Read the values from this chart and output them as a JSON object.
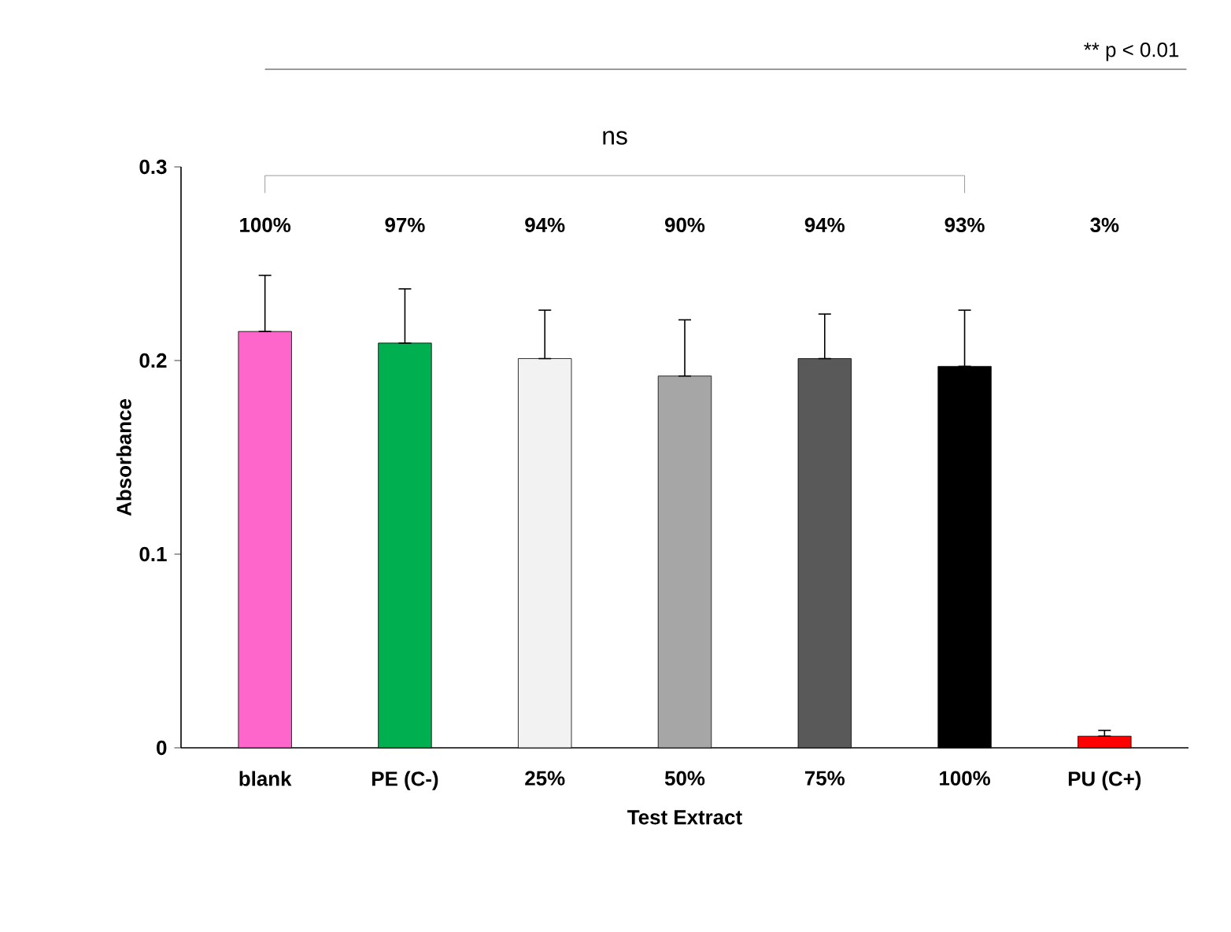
{
  "chart_data": {
    "type": "bar",
    "categories": [
      "blank",
      "PE (C-)",
      "25%",
      "50%",
      "75%",
      "100%",
      "PU (C+)"
    ],
    "values": [
      0.215,
      0.209,
      0.201,
      0.192,
      0.201,
      0.197,
      0.006
    ],
    "errors": [
      [
        0.215,
        0.244
      ],
      [
        0.209,
        0.237
      ],
      [
        0.201,
        0.226
      ],
      [
        0.192,
        0.221
      ],
      [
        0.201,
        0.224
      ],
      [
        0.197,
        0.226
      ],
      [
        0.006,
        0.009
      ]
    ],
    "colors": [
      "#ff66cc",
      "#00b050",
      "#f2f2f2",
      "#a6a6a6",
      "#595959",
      "#000000",
      "#ff0000"
    ],
    "xlabel": "Test Extract",
    "ylabel": "Absorbance",
    "ylim": [
      0,
      0.3
    ],
    "yticks": [
      0,
      0.1,
      0.2,
      0.3
    ],
    "annotations": [
      "ns",
      "** p < 0.01",
      "100%",
      "97%",
      "94%",
      "90%",
      "94%",
      "93%",
      "3%"
    ],
    "grid": false
  }
}
